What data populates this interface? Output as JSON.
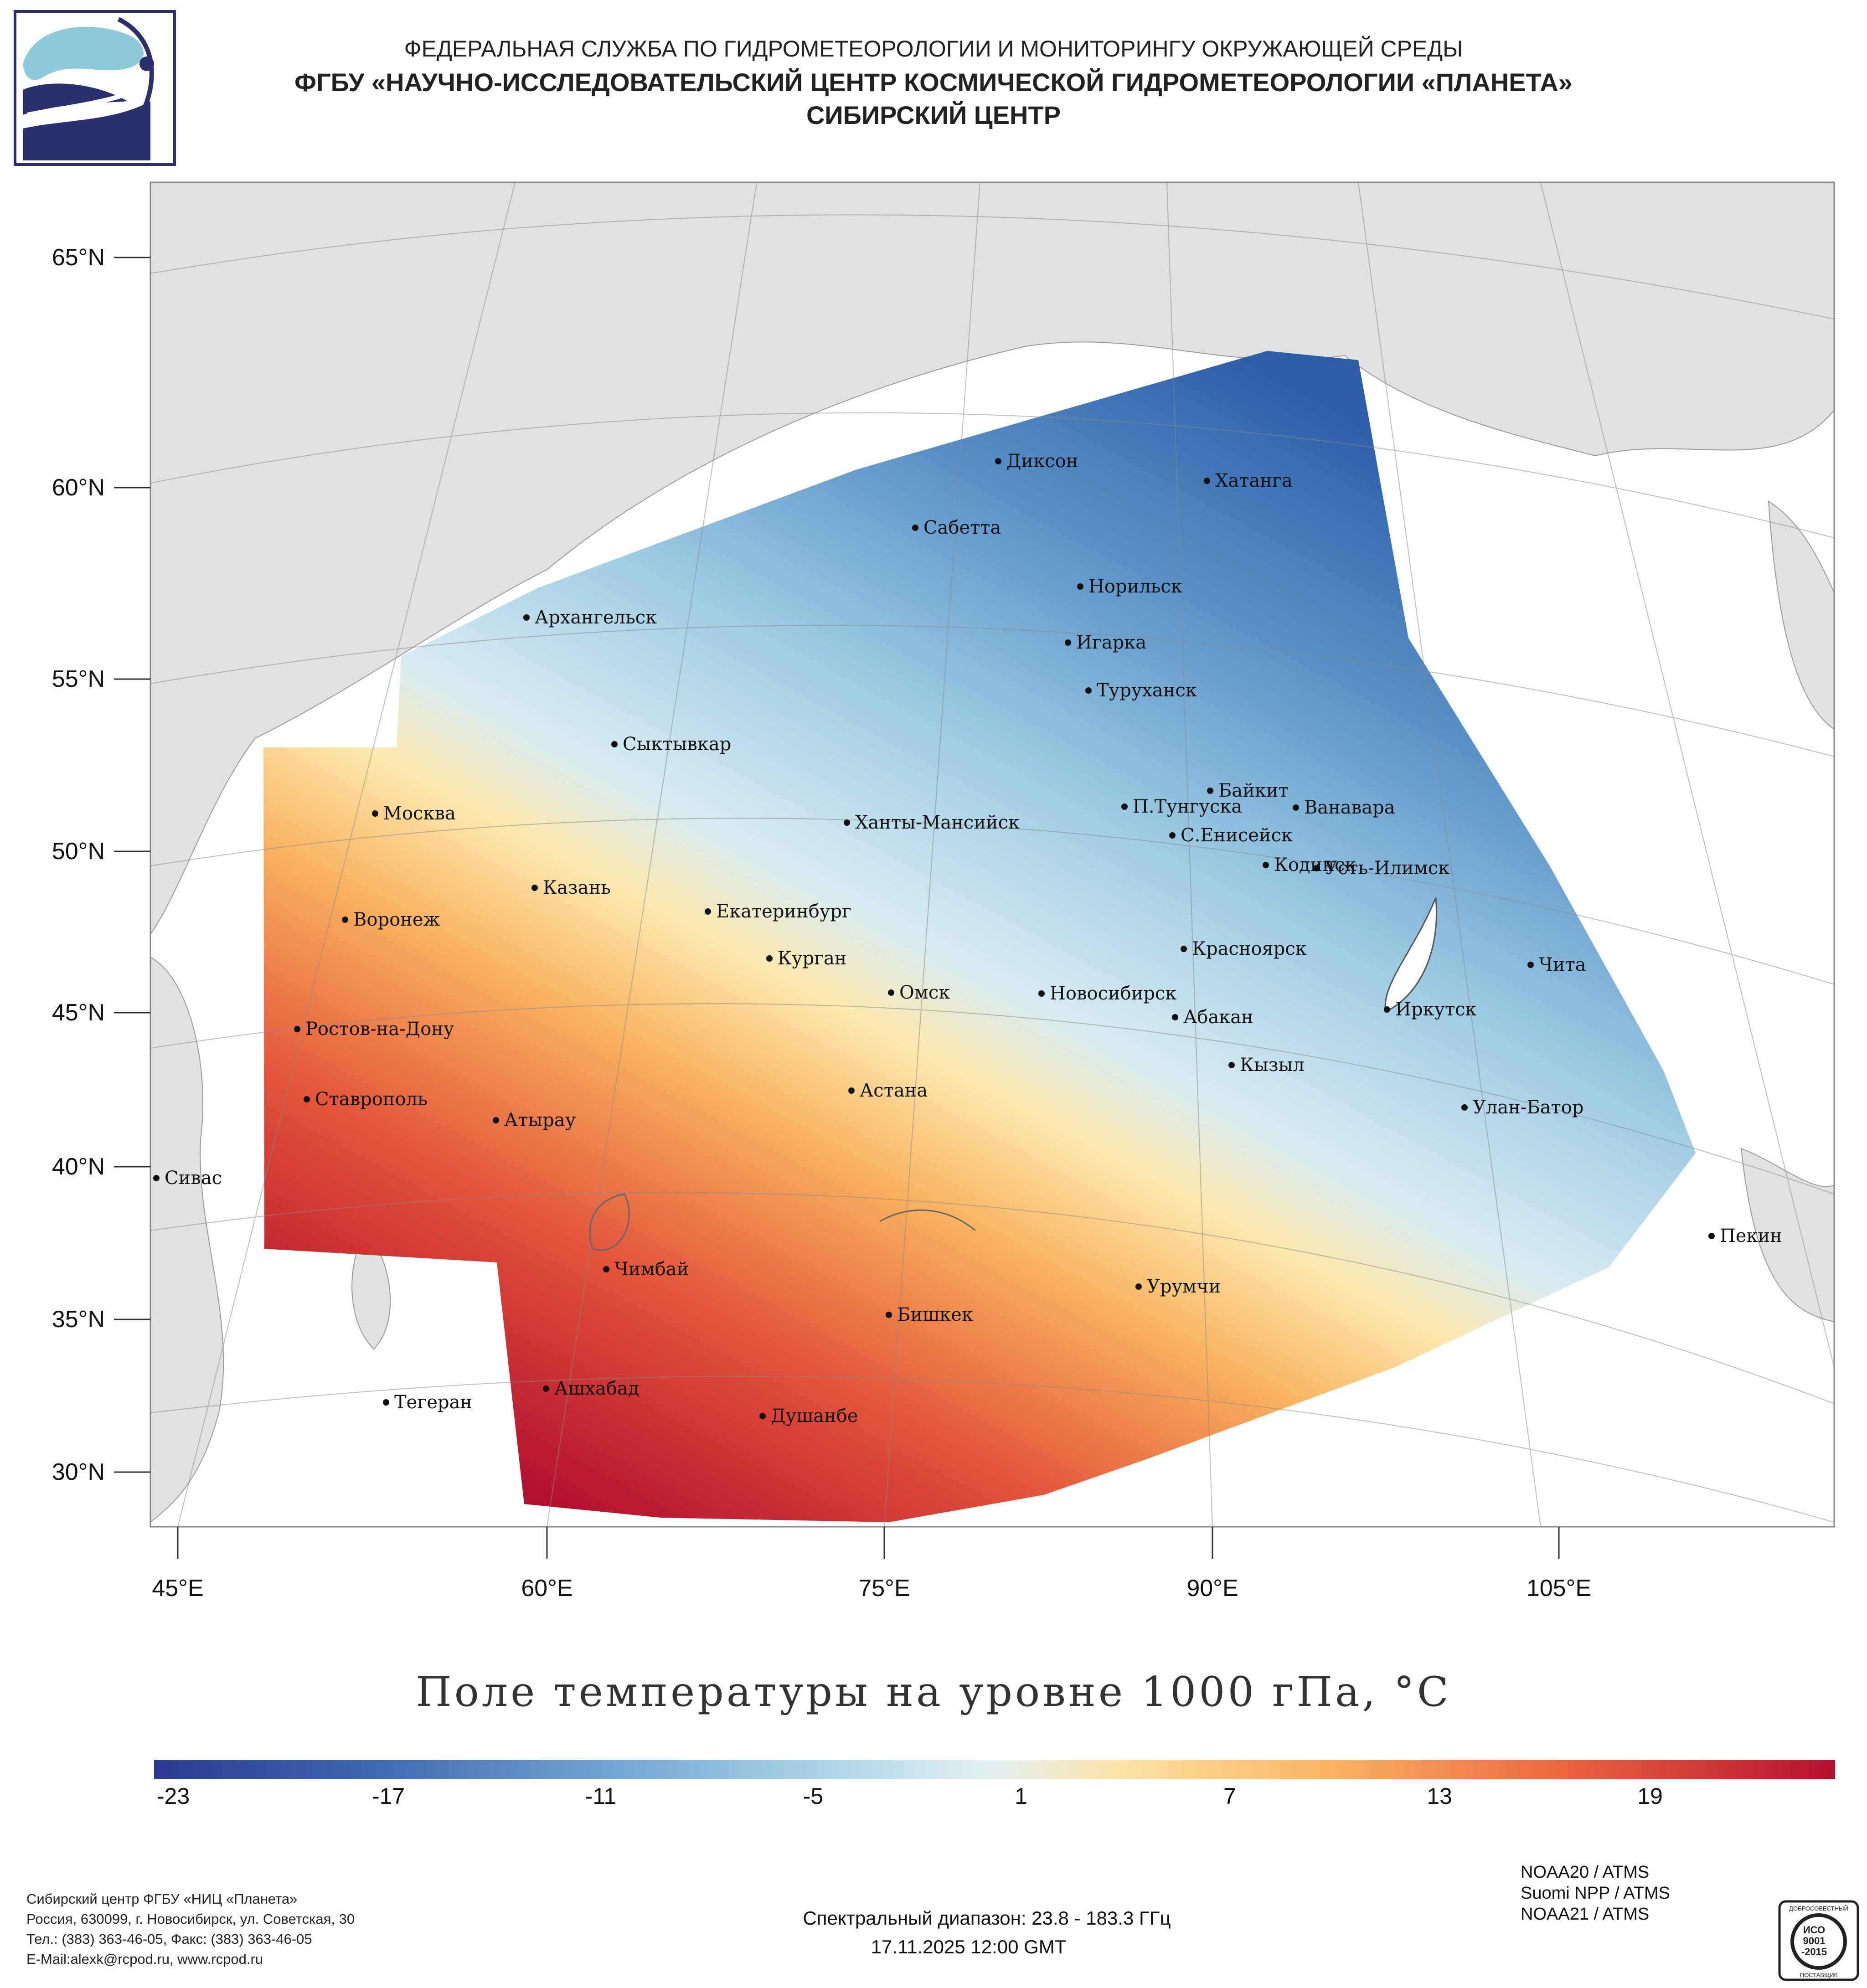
{
  "header": {
    "line1": "ФЕДЕРАЛЬНАЯ СЛУЖБА ПО ГИДРОМЕТЕОРОЛОГИИ И МОНИТОРИНГУ ОКРУЖАЮЩЕЙ СРЕДЫ",
    "line2": "ФГБУ «НАУЧНО-ИССЛЕДОВАТЕЛЬСКИЙ ЦЕНТР КОСМИЧЕСКОЙ ГИДРОМЕТЕОРОЛОГИИ «ПЛАНЕТА»",
    "line3": "СИБИРСКИЙ ЦЕНТР"
  },
  "map": {
    "lat_labels": [
      "65°N",
      "60°N",
      "55°N",
      "50°N",
      "45°N",
      "40°N",
      "35°N",
      "30°N"
    ],
    "lon_labels": [
      "45°E",
      "60°E",
      "75°E",
      "90°E",
      "105°E"
    ],
    "cities": [
      "Диксон",
      "Хатанга",
      "Сабетта",
      "Норильск",
      "Архангельск",
      "Игарка",
      "Туруханск",
      "Сыктывкар",
      "Байкит",
      "П.Тунгуска",
      "Ванавара",
      "Москва",
      "Ханты-Мансийск",
      "С.Енисейск",
      "Кодинск",
      "Усть-Илимск",
      "Казань",
      "Екатеринбург",
      "Воронеж",
      "Красноярск",
      "Курган",
      "Чита",
      "Омск",
      "Новосибирск",
      "Иркутск",
      "Абакан",
      "Ростов-на-Дону",
      "Кызыл",
      "Астана",
      "Ставрополь",
      "Улан-Батор",
      "Атырау",
      "Сивас",
      "Пекин",
      "Чимбай",
      "Урумчи",
      "Бишкек",
      "Ашхабад",
      "Душанбе",
      "Тегеран"
    ],
    "title": "Поле температуры на уровне 1000 гПа, °C"
  },
  "colorbar": {
    "ticks": [
      "-23",
      "-17",
      "-11",
      "-5",
      "1",
      "7",
      "13",
      "19"
    ],
    "min_color": "#2b3990",
    "max_color": "#b2102f"
  },
  "footer": {
    "address_lines": [
      "Сибирский центр ФГБУ «НИЦ «Планета»",
      "Россия, 630099, г. Новосибирск, ул. Советская, 30",
      "Тел.: (383) 363-46-05, Факс: (383) 363-46-05",
      "E-Mail:alexk@rcpod.ru, www.rcpod.ru"
    ],
    "spectrum": "Спектральный диапазон: 23.8 - 183.3 ГГц",
    "timestamp": "17.11.2025 12:00 GMT",
    "satellites": [
      "NOAA20 / ATMS",
      "Suomi NPP / ATMS",
      "NOAA21 / ATMS"
    ],
    "iso_top": "ДОБРОСОВЕСТНЫЙ",
    "iso_line1": "ИСО",
    "iso_line2": "9001",
    "iso_line3": "-2015",
    "iso_bottom": "ПОСТАВЩИК"
  }
}
